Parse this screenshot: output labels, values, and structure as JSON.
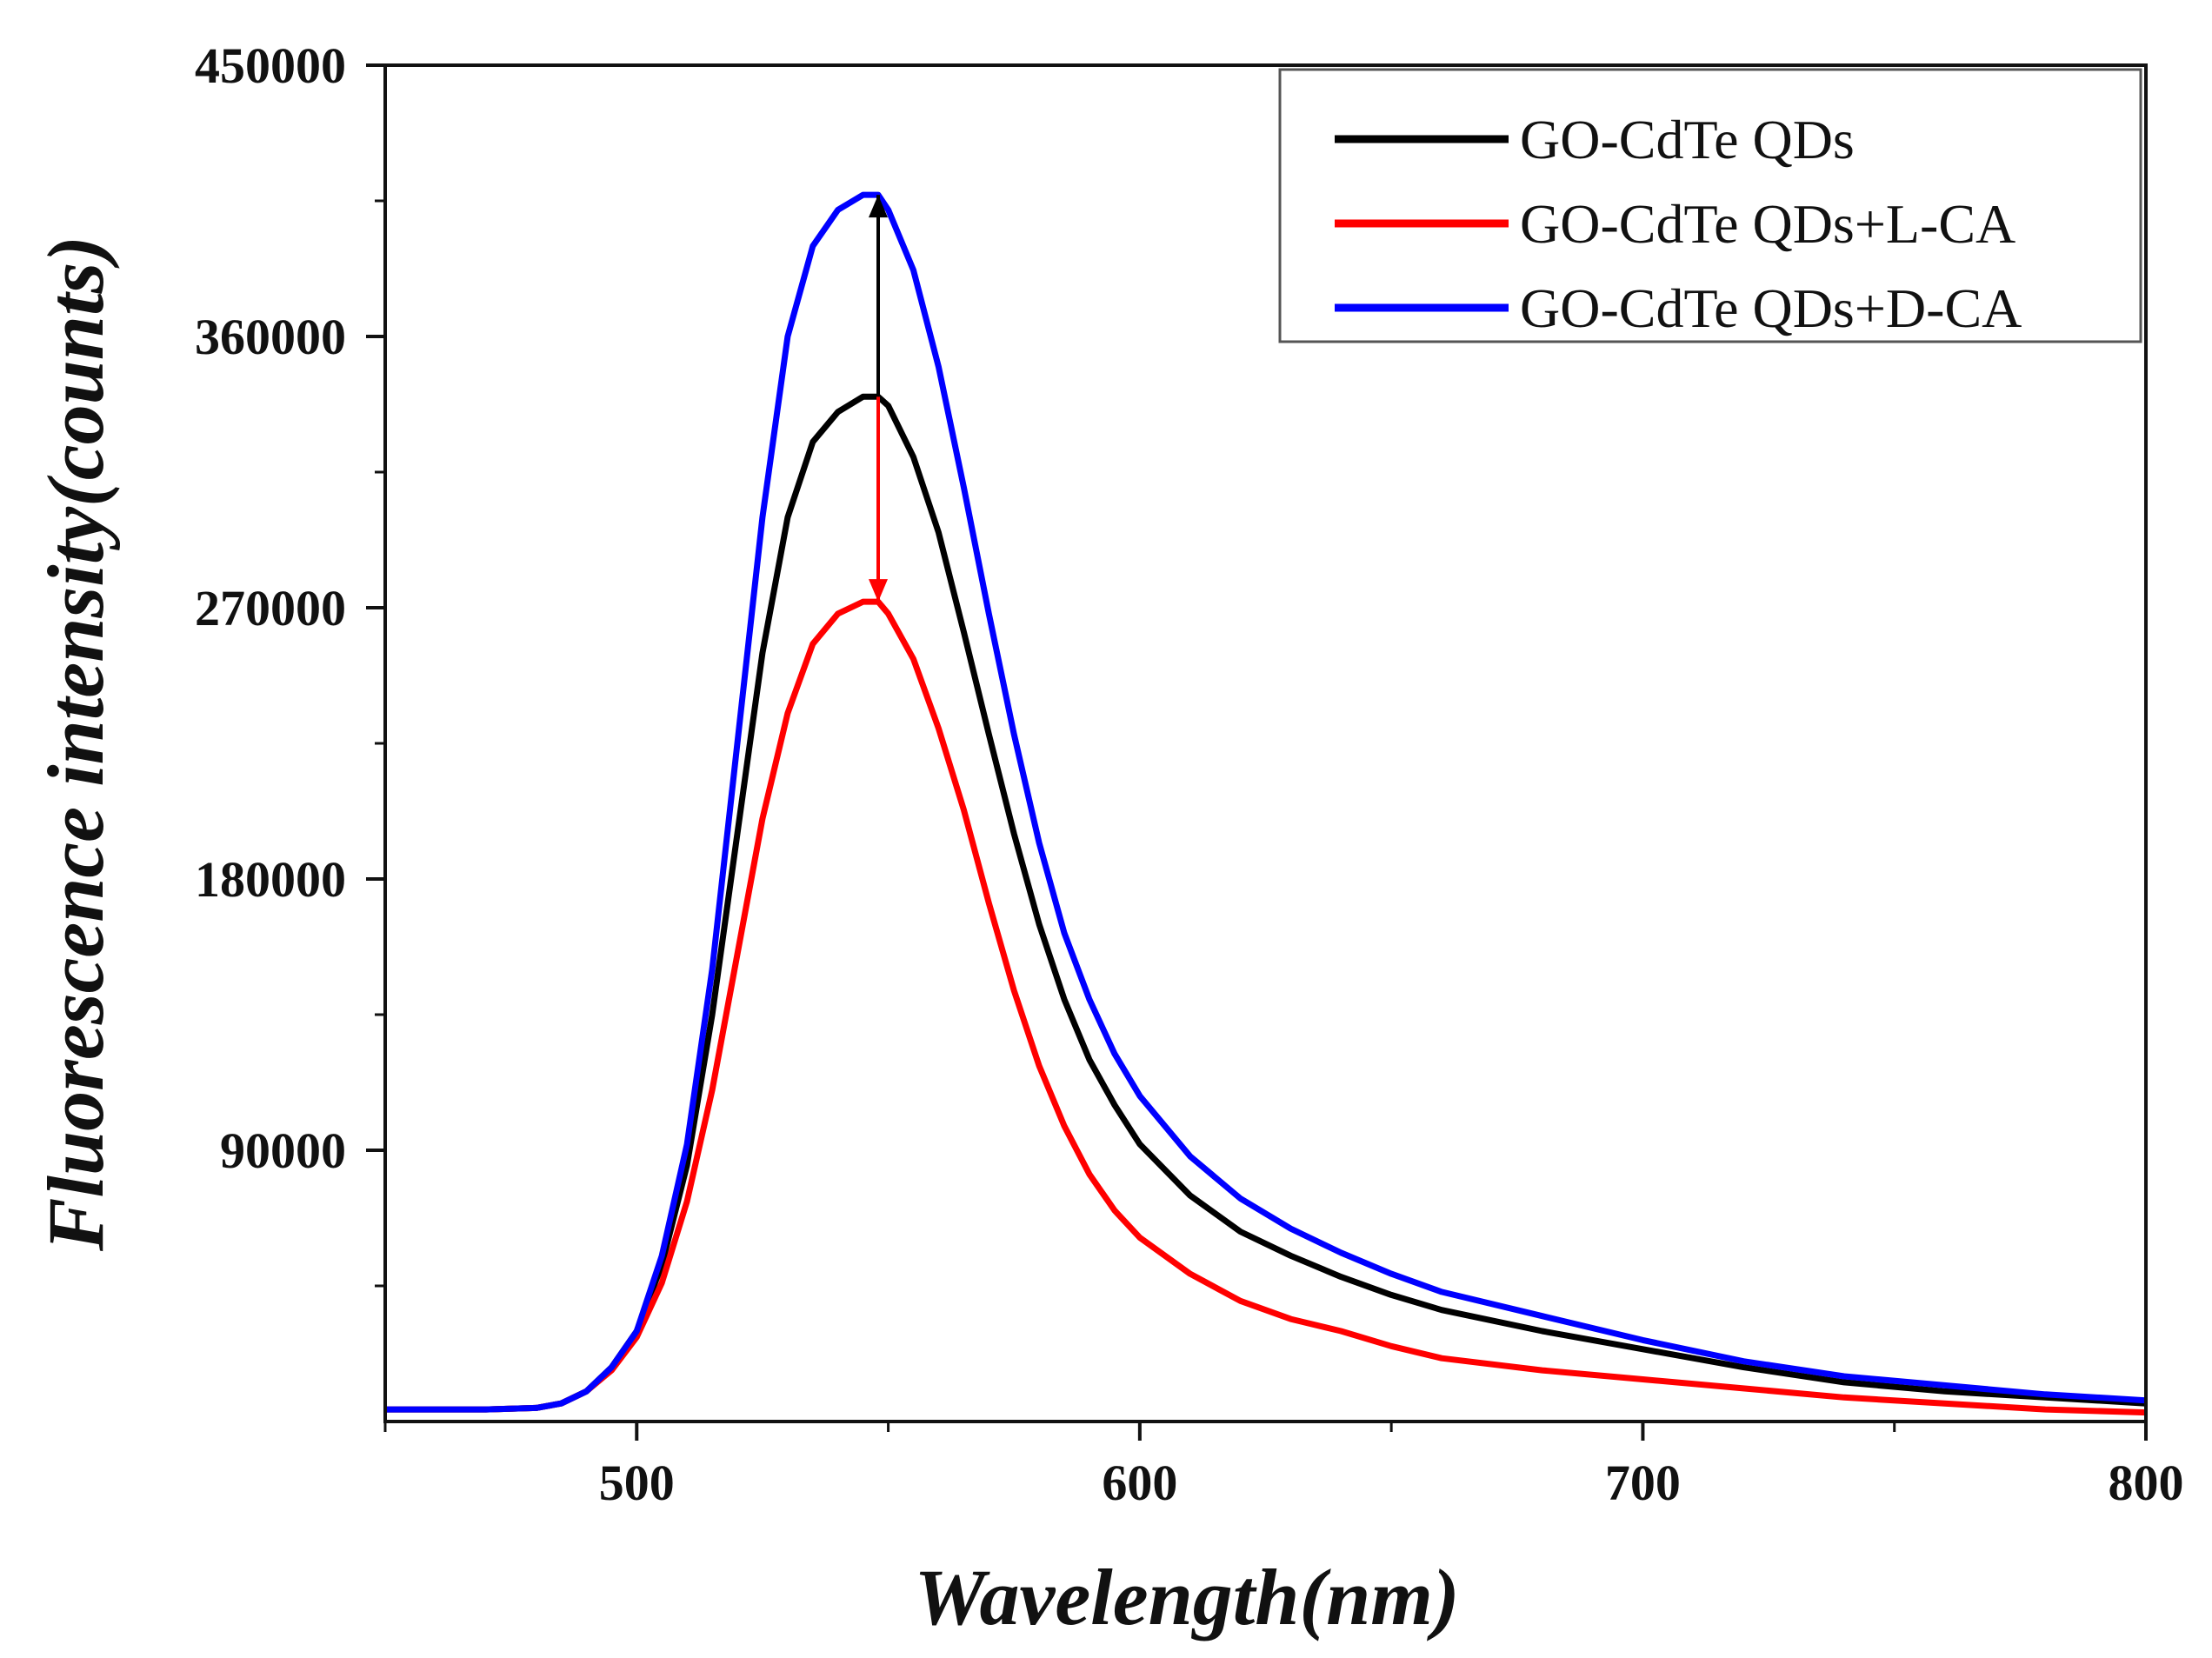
{
  "chart_data": {
    "type": "line",
    "title": "",
    "xlabel": "Wavelength(nm)",
    "ylabel": "Fluorescence intensity(counts)",
    "xlim": [
      450,
      800
    ],
    "ylim": [
      0,
      450000
    ],
    "x_ticks": [
      500,
      600,
      700,
      800
    ],
    "y_ticks": [
      90000,
      180000,
      270000,
      360000,
      450000
    ],
    "x_tick_labels": [
      "500",
      "600",
      "700",
      "800"
    ],
    "y_tick_labels": [
      "90000",
      "180000",
      "270000",
      "360000",
      "450000"
    ],
    "grid": false,
    "legend_position": "top-right",
    "series": [
      {
        "name": "GO-CdTe QDs",
        "color": "#000000",
        "x": [
          450,
          470,
          480,
          485,
          490,
          495,
          500,
          505,
          510,
          515,
          520,
          525,
          530,
          535,
          540,
          545,
          548,
          550,
          555,
          560,
          565,
          570,
          575,
          580,
          585,
          590,
          595,
          600,
          610,
          620,
          630,
          640,
          650,
          660,
          680,
          700,
          720,
          740,
          760,
          780,
          800
        ],
        "y": [
          4000,
          4000,
          4500,
          6000,
          10000,
          18000,
          30000,
          52000,
          85000,
          135000,
          195000,
          255000,
          300000,
          325000,
          335000,
          340000,
          340000,
          337000,
          320000,
          295000,
          262000,
          228000,
          195000,
          165000,
          140000,
          120000,
          105000,
          92000,
          75000,
          63000,
          55000,
          48000,
          42000,
          37000,
          30000,
          24000,
          18000,
          13000,
          10000,
          8000,
          6000
        ]
      },
      {
        "name": "GO-CdTe QDs+L-CA",
        "color": "#ff0000",
        "x": [
          450,
          470,
          480,
          485,
          490,
          495,
          500,
          505,
          510,
          515,
          520,
          525,
          530,
          535,
          540,
          545,
          548,
          550,
          555,
          560,
          565,
          570,
          575,
          580,
          585,
          590,
          595,
          600,
          610,
          620,
          630,
          640,
          650,
          660,
          680,
          700,
          720,
          740,
          760,
          780,
          800
        ],
        "y": [
          4000,
          4000,
          4500,
          6000,
          10000,
          17000,
          28000,
          46000,
          73000,
          110000,
          155000,
          200000,
          235000,
          258000,
          268000,
          272000,
          272000,
          268000,
          253000,
          230000,
          203000,
          172000,
          143000,
          118000,
          98000,
          82000,
          70000,
          61000,
          49000,
          40000,
          34000,
          30000,
          25000,
          21000,
          17000,
          14000,
          11000,
          8000,
          6000,
          4000,
          3000
        ]
      },
      {
        "name": "GO-CdTe QDs+D-CA",
        "color": "#0000ff",
        "x": [
          450,
          470,
          480,
          485,
          490,
          495,
          500,
          505,
          510,
          515,
          520,
          525,
          530,
          535,
          540,
          545,
          548,
          550,
          555,
          560,
          565,
          570,
          575,
          580,
          585,
          590,
          595,
          600,
          610,
          620,
          630,
          640,
          650,
          660,
          680,
          700,
          720,
          740,
          760,
          780,
          800
        ],
        "y": [
          4000,
          4000,
          4500,
          6000,
          10000,
          18000,
          30000,
          55000,
          92000,
          150000,
          225000,
          300000,
          360000,
          390000,
          402000,
          407000,
          407000,
          402000,
          382000,
          350000,
          310000,
          268000,
          228000,
          192000,
          162000,
          140000,
          122000,
          108000,
          88000,
          74000,
          64000,
          56000,
          49000,
          43000,
          35000,
          27000,
          20000,
          15000,
          12000,
          9000,
          7000
        ]
      }
    ],
    "annotations": [
      {
        "type": "arrow",
        "color": "#000000",
        "x": 548,
        "from": 340000,
        "to": 407000
      },
      {
        "type": "arrow",
        "color": "#ff0000",
        "x": 548,
        "from": 340000,
        "to": 272000
      }
    ]
  }
}
